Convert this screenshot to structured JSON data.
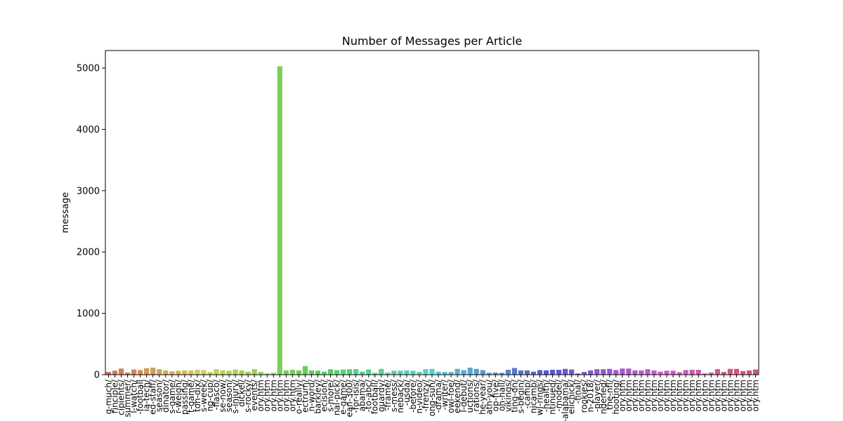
{
  "chart_data": {
    "type": "bar",
    "title": "Number of Messages per Article",
    "y_label": "message",
    "palette": "husl",
    "categories": [
      "g-much/",
      "rinciple/",
      "cipients/",
      "summer/",
      "l-watch/",
      "-football",
      "ia-tech/",
      "ed-staff/",
      "season/",
      "dinator/",
      "s-game/",
      "r-weigh/",
      "passing/",
      "t-game/",
      "ton-dix/",
      "s-week/",
      "ng-cup/",
      "-fiasco/",
      "se-now/",
      "season/",
      "s-injury/",
      "dickel/",
      "s-rocky/",
      "events/",
      "ory.htm",
      "ory.htm",
      "ory.htm",
      "ory.htm",
      "ory.htm",
      "ory.htm",
      "o-really/",
      "ectrum/",
      "n-word/",
      "barkley/",
      "ecision/",
      "s-more/",
      "nal-pick/",
      "e-game/",
      "ean-300/",
      "-for-isis/",
      "abama/",
      "-to-abc/",
      "football/",
      "guardy/",
      "-frame/",
      "s-mess/",
      "neback/",
      "-usda/",
      "-before/",
      "n-video/",
      "-frenzy/",
      "ong-suh/",
      "-drama/",
      "-writer/",
      "owl-foe/",
      "eekend/",
      "l-debut/",
      "uctions/",
      "rations/",
      "he-year/",
      "ath-you/",
      "op-five/",
      "on-hall/",
      "vikings/",
      "ting-on/",
      "s-begin/",
      "-camp/",
      "nicamp/",
      "wl-rings/",
      "-health/",
      "ntinued/",
      "-model/",
      "-alabama/",
      "elichick/",
      "-final/",
      "rookies/",
      "n-2018/",
      "-player/",
      "ndened/",
      "the-nfl/",
      "hooting/",
      "ory.htm",
      "ory.htm",
      "ory.htm",
      "ory.htm",
      "ory.htm",
      "ory.htm",
      "ory.htm",
      "ory.htm",
      "ory.htm",
      "ory.htm",
      "ory.htm",
      "ory.htm",
      "ory.htm",
      "ory.htm",
      "ory.htm",
      "ory.htm",
      "ory.htm",
      "ory.htm",
      "ory.htm",
      "ory.htm",
      "ory.htm",
      "ory.htm"
    ],
    "values": [
      45,
      65,
      100,
      35,
      85,
      75,
      105,
      115,
      90,
      70,
      55,
      65,
      70,
      70,
      80,
      75,
      45,
      90,
      70,
      65,
      85,
      70,
      50,
      90,
      45,
      20,
      30,
      5029,
      70,
      80,
      70,
      140,
      70,
      65,
      50,
      90,
      75,
      85,
      90,
      90,
      50,
      85,
      30,
      95,
      35,
      65,
      65,
      70,
      65,
      45,
      90,
      95,
      50,
      45,
      45,
      95,
      75,
      115,
      95,
      75,
      30,
      35,
      30,
      80,
      110,
      70,
      70,
      50,
      75,
      70,
      80,
      80,
      95,
      85,
      20,
      45,
      70,
      90,
      90,
      95,
      75,
      100,
      100,
      70,
      70,
      90,
      70,
      50,
      65,
      65,
      40,
      75,
      80,
      80,
      20,
      35,
      90,
      45,
      95,
      95,
      60,
      70,
      85
    ],
    "ylim": [
      0,
      5286
    ],
    "yticks": [
      0,
      1000,
      2000,
      3000,
      4000,
      5000
    ]
  }
}
